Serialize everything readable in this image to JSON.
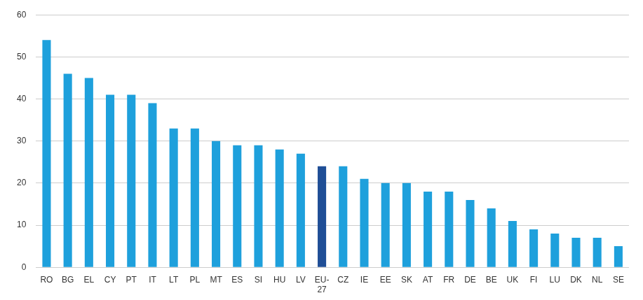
{
  "chart_data": {
    "type": "bar",
    "categories": [
      "RO",
      "BG",
      "EL",
      "CY",
      "PT",
      "IT",
      "LT",
      "PL",
      "MT",
      "ES",
      "SI",
      "HU",
      "LV",
      "EU-27",
      "CZ",
      "IE",
      "EE",
      "SK",
      "AT",
      "FR",
      "DE",
      "BE",
      "UK",
      "FI",
      "LU",
      "DK",
      "NL",
      "SE"
    ],
    "values": [
      54,
      46,
      45,
      41,
      41,
      39,
      33,
      33,
      30,
      29,
      29,
      28,
      27,
      24,
      24,
      21,
      20,
      20,
      18,
      18,
      16,
      14,
      11,
      9,
      8,
      7,
      7,
      5
    ],
    "colors": [
      "#1ea0dc",
      "#1ea0dc",
      "#1ea0dc",
      "#1ea0dc",
      "#1ea0dc",
      "#1ea0dc",
      "#1ea0dc",
      "#1ea0dc",
      "#1ea0dc",
      "#1ea0dc",
      "#1ea0dc",
      "#1ea0dc",
      "#1ea0dc",
      "#1f4e96",
      "#1ea0dc",
      "#1ea0dc",
      "#1ea0dc",
      "#1ea0dc",
      "#1ea0dc",
      "#1ea0dc",
      "#1ea0dc",
      "#1ea0dc",
      "#1ea0dc",
      "#1ea0dc",
      "#1ea0dc",
      "#1ea0dc",
      "#1ea0dc",
      "#1ea0dc"
    ],
    "ylim": [
      0,
      60
    ],
    "yticks": [
      0,
      10,
      20,
      30,
      40,
      50,
      60
    ],
    "grid": true
  }
}
